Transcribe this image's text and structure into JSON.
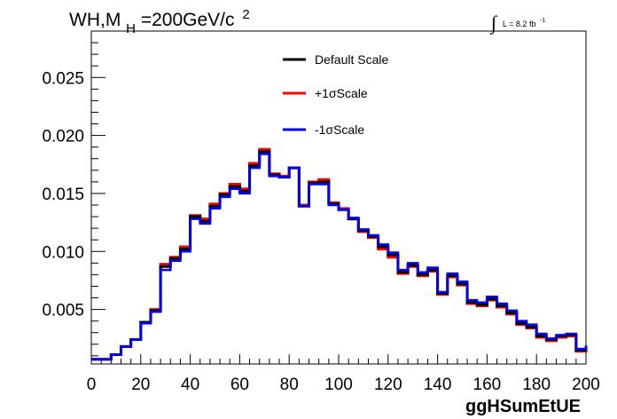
{
  "chart_data": {
    "type": "line",
    "title": {
      "main": "WH,M",
      "sub": "H",
      "rest": "=200GeV/c",
      "sup": "2"
    },
    "lumi": {
      "integral": "∫",
      "text": "L = 8.2 fb",
      "sup": "-1"
    },
    "xlabel": "ggHSumEtUE",
    "ylabel": "",
    "xlim": [
      0,
      200
    ],
    "ylim": [
      0.0003,
      0.029
    ],
    "xticks": [
      0,
      20,
      40,
      60,
      80,
      100,
      120,
      140,
      160,
      180,
      200
    ],
    "xtick_labels": [
      "0",
      "20",
      "40",
      "60",
      "80",
      "100",
      "120",
      "140",
      "160",
      "180",
      "200"
    ],
    "yticks": [
      0.005,
      0.01,
      0.015,
      0.02,
      0.025
    ],
    "ytick_labels": [
      "0.005",
      "0.010",
      "0.015",
      "0.020",
      "0.025"
    ],
    "bin_width": 4,
    "bin_edges_start": 0,
    "legend_position": "top-center",
    "series": [
      {
        "name": "Default Scale",
        "color": "#000000",
        "values": [
          0.0007,
          0.0007,
          0.0011,
          0.0018,
          0.0024,
          0.0039,
          0.0049,
          0.0087,
          0.0094,
          0.0102,
          0.013,
          0.0126,
          0.0139,
          0.0149,
          0.0156,
          0.0152,
          0.0174,
          0.0186,
          0.0166,
          0.0164,
          0.0172,
          0.0139,
          0.0159,
          0.016,
          0.0141,
          0.0136,
          0.0128,
          0.0118,
          0.0113,
          0.0104,
          0.0097,
          0.0082,
          0.0088,
          0.008,
          0.0084,
          0.0064,
          0.0079,
          0.0072,
          0.0056,
          0.0054,
          0.0059,
          0.0053,
          0.0047,
          0.0038,
          0.0035,
          0.0027,
          0.0024,
          0.0027,
          0.0028,
          0.0015,
          0.0018
        ]
      },
      {
        "name": "+1σScale",
        "color": "#ff0000",
        "values": [
          0.0007,
          0.0007,
          0.0011,
          0.0018,
          0.0024,
          0.0039,
          0.005,
          0.0089,
          0.0095,
          0.0104,
          0.0131,
          0.0128,
          0.0141,
          0.015,
          0.0158,
          0.0154,
          0.0176,
          0.0188,
          0.0167,
          0.0165,
          0.0172,
          0.014,
          0.016,
          0.0162,
          0.0142,
          0.0137,
          0.0128,
          0.0117,
          0.0112,
          0.0102,
          0.0095,
          0.0081,
          0.0087,
          0.0079,
          0.0083,
          0.0063,
          0.0078,
          0.0071,
          0.0055,
          0.0053,
          0.0058,
          0.0052,
          0.0046,
          0.0037,
          0.0034,
          0.0026,
          0.0023,
          0.0026,
          0.0027,
          0.0014,
          0.0018
        ]
      },
      {
        "name": "-1σScale",
        "color": "#0000ff",
        "values": [
          0.0007,
          0.0007,
          0.0011,
          0.0018,
          0.0024,
          0.0038,
          0.0048,
          0.0084,
          0.0092,
          0.01,
          0.0128,
          0.0124,
          0.0137,
          0.0147,
          0.0154,
          0.015,
          0.0172,
          0.0184,
          0.0165,
          0.0164,
          0.0172,
          0.0139,
          0.0158,
          0.0158,
          0.014,
          0.0136,
          0.0129,
          0.0119,
          0.0114,
          0.0106,
          0.0099,
          0.0084,
          0.009,
          0.0082,
          0.0086,
          0.0065,
          0.0081,
          0.0074,
          0.0058,
          0.0056,
          0.0061,
          0.0055,
          0.0049,
          0.004,
          0.0037,
          0.0029,
          0.0025,
          0.0028,
          0.0029,
          0.0016,
          0.0019
        ]
      }
    ]
  }
}
